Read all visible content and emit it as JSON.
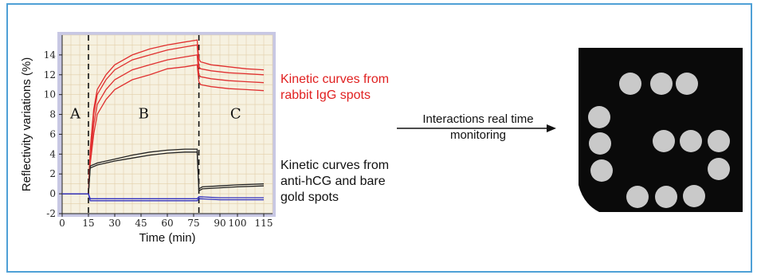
{
  "figure": {
    "panel_label": "",
    "annotation_red": [
      "Kinetic curves from",
      "rabbit IgG spots"
    ],
    "annotation_black": [
      "Kinetic curves from",
      "anti-hCG and bare",
      "gold spots"
    ],
    "arrow_label": [
      "Interactions real time",
      "monitoring"
    ],
    "colors": {
      "red_curves": "#e03030",
      "black_curves": "#222222",
      "blue_curves": "#3030c0",
      "frame": "#4fa0d6",
      "plot_bg": "#f6f1e0"
    }
  },
  "chart_data": {
    "type": "line",
    "xlabel": "Time (min)",
    "ylabel": "Reflectivity variations (%)",
    "xlim": [
      0,
      120
    ],
    "ylim": [
      -2,
      16
    ],
    "x_ticks": [
      0,
      15,
      30,
      45,
      60,
      75,
      90,
      100,
      115
    ],
    "y_ticks": [
      -2,
      0,
      2,
      4,
      6,
      8,
      10,
      12,
      14
    ],
    "phase_boundaries": [
      15,
      78
    ],
    "phase_labels": [
      "A",
      "B",
      "C"
    ],
    "grid": true,
    "series": [
      {
        "group": "rabbit IgG",
        "x": [
          0,
          14,
          15,
          16,
          18,
          20,
          25,
          30,
          40,
          50,
          60,
          70,
          77,
          78,
          79,
          85,
          95,
          105,
          115
        ],
        "y": [
          0,
          0,
          0,
          3,
          6,
          8,
          9.5,
          10.5,
          11.5,
          12,
          12.6,
          12.8,
          13,
          11.3,
          11,
          10.8,
          10.6,
          10.5,
          10.4
        ]
      },
      {
        "group": "rabbit IgG",
        "x": [
          0,
          14,
          15,
          16,
          18,
          20,
          25,
          30,
          40,
          50,
          60,
          70,
          77,
          78,
          79,
          85,
          95,
          105,
          115
        ],
        "y": [
          0,
          0,
          0,
          3.5,
          7,
          9,
          10.5,
          11.5,
          12.5,
          13,
          13.5,
          13.8,
          14,
          12,
          11.8,
          11.6,
          11.4,
          11.3,
          11.2
        ]
      },
      {
        "group": "rabbit IgG",
        "x": [
          0,
          14,
          15,
          16,
          18,
          20,
          25,
          30,
          40,
          50,
          60,
          70,
          77,
          78,
          79,
          85,
          95,
          105,
          115
        ],
        "y": [
          0,
          0,
          0,
          4,
          8,
          10,
          11.5,
          12.5,
          13.5,
          14,
          14.5,
          14.8,
          15,
          12.8,
          12.6,
          12.4,
          12.2,
          12.1,
          12
        ]
      },
      {
        "group": "rabbit IgG",
        "x": [
          0,
          14,
          15,
          16,
          18,
          20,
          25,
          30,
          40,
          50,
          60,
          70,
          77,
          78,
          79,
          85,
          95,
          105,
          115
        ],
        "y": [
          0,
          0,
          0,
          4.5,
          8.5,
          10.5,
          12,
          13,
          14,
          14.6,
          15,
          15.3,
          15.5,
          13.6,
          13.3,
          13,
          12.8,
          12.6,
          12.5
        ]
      },
      {
        "group": "anti-hCG",
        "x": [
          0,
          14,
          15,
          16,
          20,
          30,
          40,
          50,
          60,
          70,
          77,
          78,
          80,
          90,
          100,
          115
        ],
        "y": [
          0,
          0,
          0,
          2.8,
          3.1,
          3.5,
          3.9,
          4.2,
          4.4,
          4.5,
          4.5,
          0.5,
          0.7,
          0.8,
          0.9,
          1.0
        ]
      },
      {
        "group": "anti-hCG",
        "x": [
          0,
          14,
          15,
          16,
          20,
          30,
          40,
          50,
          60,
          70,
          77,
          78,
          80,
          90,
          100,
          115
        ],
        "y": [
          0,
          0,
          0,
          2.6,
          2.9,
          3.3,
          3.6,
          3.9,
          4.1,
          4.2,
          4.2,
          0.3,
          0.5,
          0.6,
          0.7,
          0.8
        ]
      },
      {
        "group": "bare gold",
        "x": [
          0,
          14,
          15,
          16,
          30,
          50,
          77,
          78,
          90,
          115
        ],
        "y": [
          0,
          0,
          0,
          -0.5,
          -0.5,
          -0.5,
          -0.5,
          -0.3,
          -0.4,
          -0.4
        ]
      },
      {
        "group": "bare gold",
        "x": [
          0,
          14,
          15,
          16,
          30,
          50,
          77,
          78,
          90,
          115
        ],
        "y": [
          0,
          0,
          0,
          -0.7,
          -0.7,
          -0.7,
          -0.7,
          -0.5,
          -0.6,
          -0.6
        ]
      }
    ]
  },
  "spot_image": {
    "spot_count": 13
  }
}
